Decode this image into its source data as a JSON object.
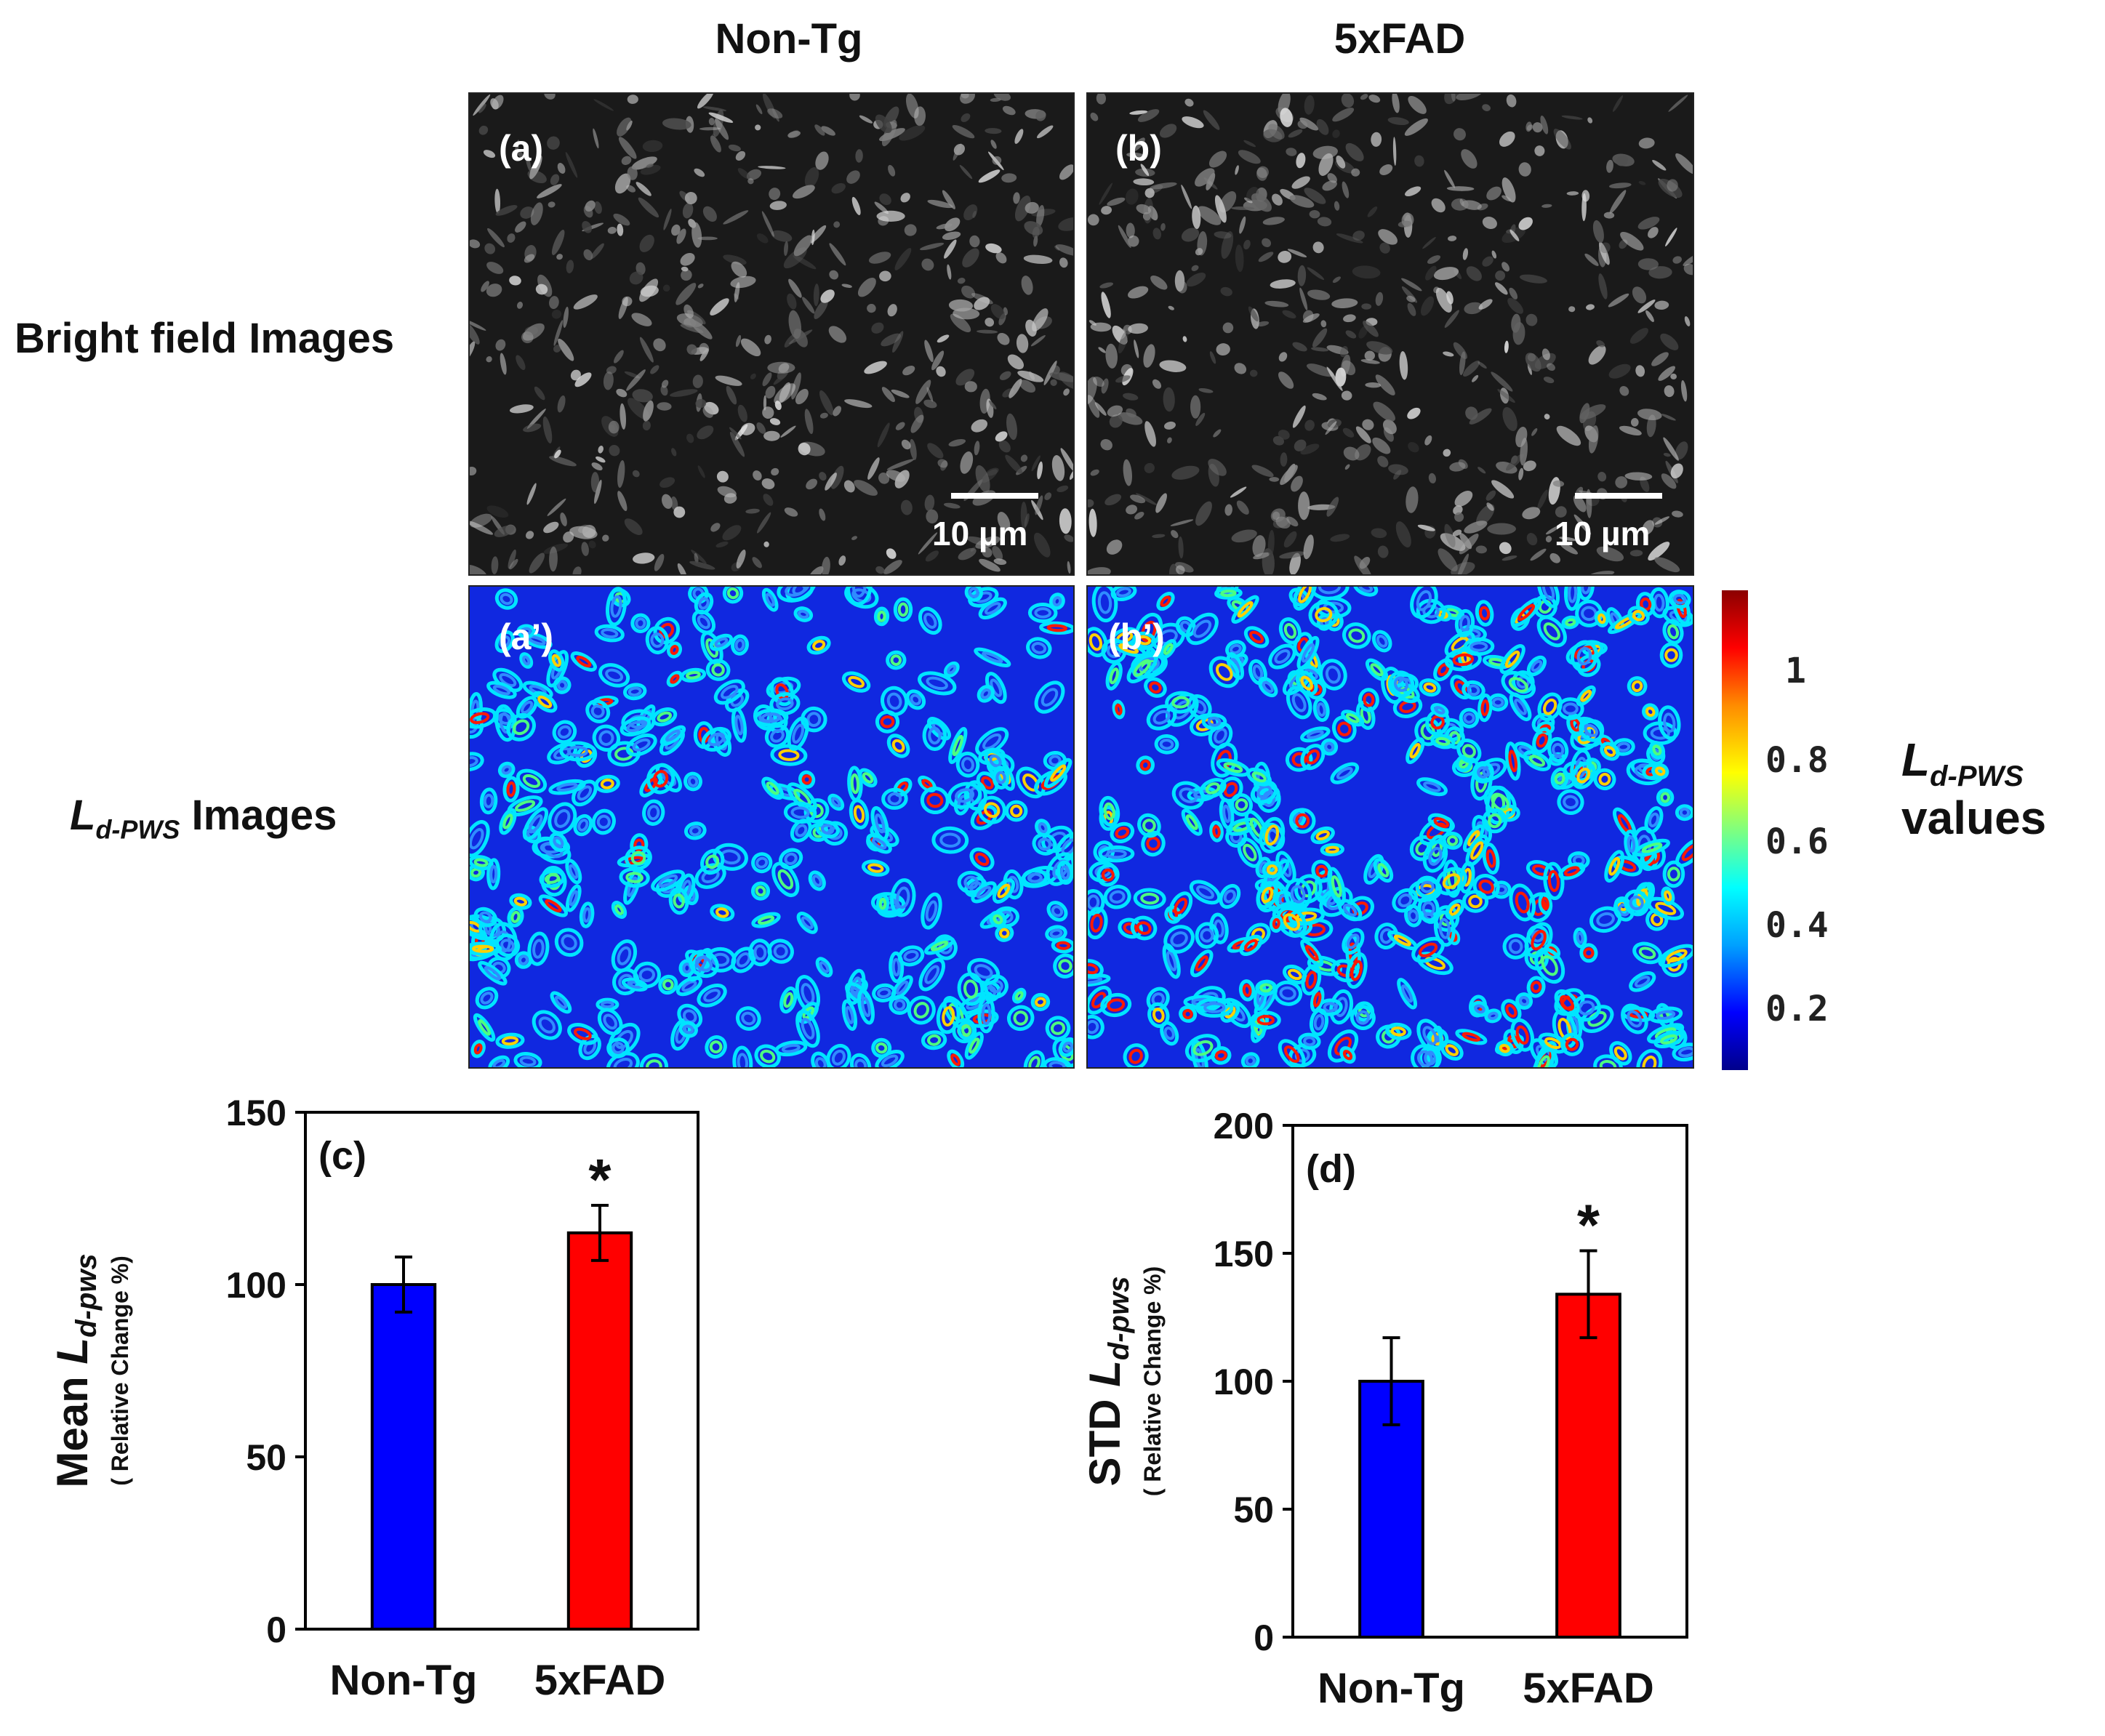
{
  "columns": {
    "left_title": "Non-Tg",
    "right_title": "5xFAD"
  },
  "rows": {
    "bright_field_label": "Bright field Images",
    "ldpws_label_main": "L",
    "ldpws_label_sub": "d-PWS",
    "ldpws_label_rest": " Images"
  },
  "panels": {
    "a": "(a)",
    "b": "(b)",
    "a_prime": "(a’)",
    "b_prime": "(b’)",
    "scale_text": "10 µm"
  },
  "colorbar": {
    "ticks": [
      "1",
      "0.8",
      "0.6",
      "0.4",
      "0.2"
    ],
    "label_main": "L",
    "label_sub": "d-PWS",
    "label_line2": "values"
  },
  "chart_data": [
    {
      "type": "bar",
      "panel_label": "(c)",
      "categories": [
        "Non-Tg",
        "5xFAD"
      ],
      "values": [
        100,
        115
      ],
      "errors": [
        8,
        8
      ],
      "colors": [
        "#0000ff",
        "#ff0000"
      ],
      "significance": [
        "",
        "*"
      ],
      "ylim": [
        0,
        150
      ],
      "yticks": [
        0,
        50,
        100,
        150
      ],
      "ylabel_main": "Mean L",
      "ylabel_sub": "d-pws",
      "ylabel_line2": "( Relative Change %)"
    },
    {
      "type": "bar",
      "panel_label": "(d)",
      "categories": [
        "Non-Tg",
        "5xFAD"
      ],
      "values": [
        100,
        134
      ],
      "errors": [
        17,
        17
      ],
      "colors": [
        "#0000ff",
        "#ff0000"
      ],
      "significance": [
        "",
        "*"
      ],
      "ylim": [
        0,
        200
      ],
      "yticks": [
        0,
        50,
        100,
        150,
        200
      ],
      "ylabel_main": "STD L",
      "ylabel_sub": "d-pws",
      "ylabel_line2": "( Relative Change %)"
    }
  ]
}
